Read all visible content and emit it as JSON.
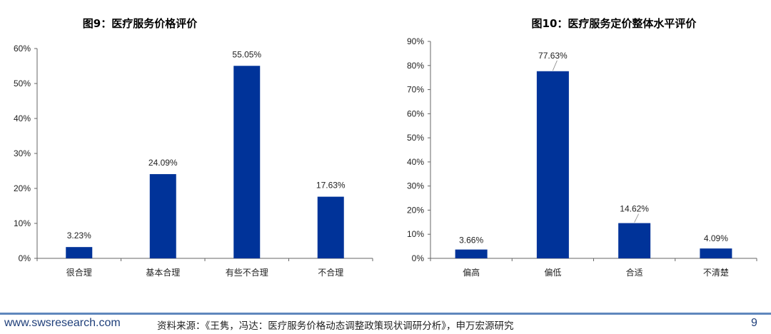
{
  "chart_data": [
    {
      "type": "bar",
      "title": "图9：医疗服务价格评价",
      "categories": [
        "很合理",
        "基本合理",
        "有些不合理",
        "不合理"
      ],
      "values": [
        3.23,
        24.09,
        55.05,
        17.63
      ],
      "data_labels": [
        "3.23%",
        "24.09%",
        "55.05%",
        "17.63%"
      ],
      "ylim": [
        0,
        60
      ],
      "yticks": [
        "0%",
        "10%",
        "20%",
        "30%",
        "40%",
        "50%",
        "60%"
      ],
      "bar_color": "#003399",
      "grid": false
    },
    {
      "type": "bar",
      "title": "图10：医疗服务定价整体水平评价",
      "categories": [
        "偏高",
        "偏低",
        "合适",
        "不清楚"
      ],
      "values": [
        3.66,
        77.63,
        14.62,
        4.09
      ],
      "data_labels": [
        "3.66%",
        "77.63%",
        "14.62%",
        "4.09%"
      ],
      "ylim": [
        0,
        90
      ],
      "yticks": [
        "0%",
        "10%",
        "20%",
        "30%",
        "40%",
        "50%",
        "60%",
        "70%",
        "80%",
        "90%"
      ],
      "bar_color": "#003399",
      "grid": false
    }
  ],
  "footer": {
    "url": "www.swsresearch.com",
    "source": "资料来源：《王隽，冯达：医疗服务价格动态调整政策现状调研分析》，申万宏源研究",
    "page": "9"
  }
}
